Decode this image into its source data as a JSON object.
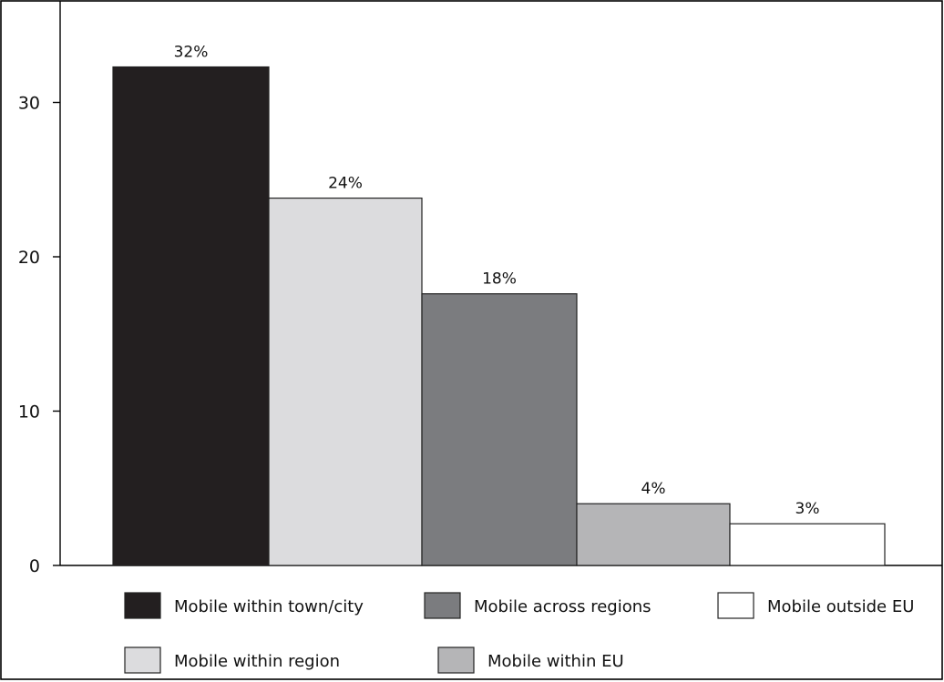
{
  "chart_data": {
    "type": "bar",
    "title": "",
    "xlabel": "",
    "ylabel": "",
    "ylim": [
      0,
      35
    ],
    "yticks": [
      0,
      10,
      20,
      30
    ],
    "grid": false,
    "legend_position": "bottom",
    "series": [
      {
        "name": "Mobile within town/city",
        "value": 32.3,
        "label": "32%",
        "color": "#231f20"
      },
      {
        "name": "Mobile within region",
        "value": 23.8,
        "label": "24%",
        "color": "#dcdcde"
      },
      {
        "name": "Mobile across regions",
        "value": 17.6,
        "label": "18%",
        "color": "#7b7c7f"
      },
      {
        "name": "Mobile within EU",
        "value": 4.0,
        "label": "4%",
        "color": "#b5b5b7"
      },
      {
        "name": "Mobile outside EU",
        "value": 2.7,
        "label": "3%",
        "color": "#ffffff"
      }
    ],
    "legend_order": [
      0,
      2,
      4,
      1,
      3
    ]
  }
}
